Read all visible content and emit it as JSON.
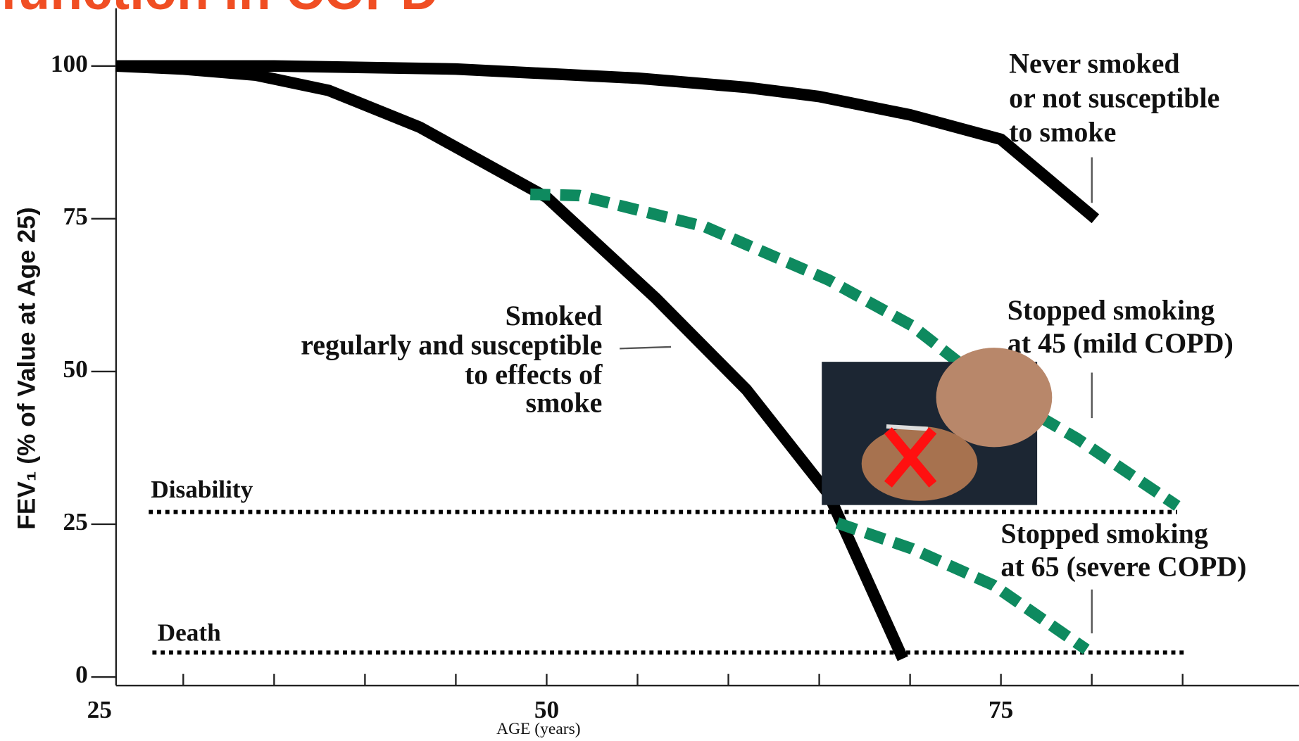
{
  "chart_data": {
    "type": "line",
    "title": "function in COPD",
    "x_label": "AGE (years)",
    "y_label": "FEV₁ (% of Value at Age 25)",
    "xlim": [
      26.3,
      91.4
    ],
    "ylim": [
      -1.4,
      110.8
    ],
    "xticks": [
      25,
      50,
      75
    ],
    "x_minor_ticks": [
      30,
      35,
      40,
      45,
      55,
      60,
      65,
      70,
      80,
      85
    ],
    "yticks": [
      0,
      25,
      50,
      75,
      100
    ],
    "series": [
      {
        "label": [
          "Never smoked",
          "or not susceptible",
          "to smoke"
        ],
        "color": "#000000",
        "dashed": false,
        "x": [
          26.3,
          35,
          45,
          55,
          61,
          65,
          70,
          75,
          77.8,
          80.2
        ],
        "values": [
          100,
          100,
          99.5,
          98,
          96.5,
          95,
          92,
          88,
          81,
          75
        ]
      },
      {
        "label": [
          "Smoked",
          "regularly and susceptible",
          "to effects of",
          "smoke"
        ],
        "color": "#000000",
        "dashed": false,
        "x": [
          26.3,
          30,
          34,
          38,
          43,
          50,
          56,
          61,
          65.5,
          69.6
        ],
        "values": [
          100,
          99.5,
          98.5,
          96,
          90,
          78.5,
          62,
          47,
          30,
          3
        ]
      },
      {
        "label": [
          "Stopped smoking",
          "at 45 (mild COPD)"
        ],
        "color": "#0e8a5f",
        "dashed": true,
        "x": [
          49.1,
          51.8,
          58.7,
          65.5,
          70.1,
          74.6,
          79.2,
          84.7
        ],
        "values": [
          79,
          78.8,
          73.7,
          65,
          57.5,
          47,
          39,
          28
        ]
      },
      {
        "label": [
          "Stopped smoking",
          "at 65 (severe COPD)"
        ],
        "color": "#0e8a5f",
        "dashed": true,
        "x": [
          66,
          70.1,
          74.6,
          79.7
        ],
        "values": [
          25.2,
          21,
          15,
          4.5
        ]
      }
    ],
    "reference_lines": [
      {
        "label": "Disability",
        "value": 27,
        "x": [
          28.1,
          84.7
        ]
      },
      {
        "label": "Death",
        "value": 4,
        "x": [
          28.3,
          85.1
        ]
      }
    ]
  }
}
